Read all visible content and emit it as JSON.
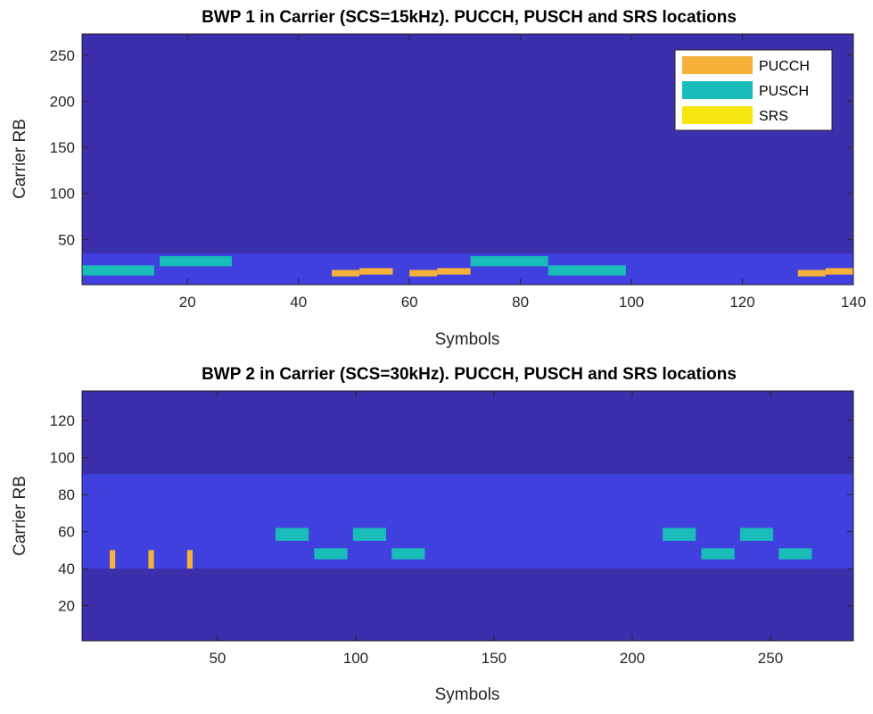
{
  "chart_data": [
    {
      "type": "heatmap",
      "title": "BWP 1 in Carrier (SCS=15kHz). PUCCH, PUSCH and SRS locations",
      "xlabel": "Symbols",
      "ylabel": "Carrier RB",
      "xlim": [
        1,
        140
      ],
      "ylim": [
        1,
        273
      ],
      "xticks": [
        20,
        40,
        60,
        80,
        100,
        120,
        140
      ],
      "yticks": [
        50,
        100,
        150,
        200,
        250
      ],
      "background_color": "#3c2fab",
      "bwp_region": {
        "rb_start": 1,
        "rb_end": 35,
        "color": "#4040de"
      },
      "legend": {
        "location": "top-right",
        "entries": [
          {
            "label": "PUCCH",
            "color": "#f5b13a"
          },
          {
            "label": "PUSCH",
            "color": "#19bcb8"
          },
          {
            "label": "SRS",
            "color": "#f5e60e"
          }
        ]
      },
      "allocations": [
        {
          "channel": "PUSCH",
          "sym_start": 1,
          "sym_end": 14,
          "rb_start": 11,
          "rb_end": 22,
          "color": "#19bcb8"
        },
        {
          "channel": "PUSCH",
          "sym_start": 15,
          "sym_end": 28,
          "rb_start": 21,
          "rb_end": 32,
          "color": "#19bcb8"
        },
        {
          "channel": "PUCCH",
          "sym_start": 46,
          "sym_end": 51,
          "rb_start": 10,
          "rb_end": 17,
          "color": "#f5b13a"
        },
        {
          "channel": "PUCCH",
          "sym_start": 51,
          "sym_end": 57,
          "rb_start": 12,
          "rb_end": 19,
          "color": "#f5b13a"
        },
        {
          "channel": "PUCCH",
          "sym_start": 60,
          "sym_end": 65,
          "rb_start": 10,
          "rb_end": 17,
          "color": "#f5b13a"
        },
        {
          "channel": "PUCCH",
          "sym_start": 65,
          "sym_end": 71,
          "rb_start": 12,
          "rb_end": 19,
          "color": "#f5b13a"
        },
        {
          "channel": "PUSCH",
          "sym_start": 71,
          "sym_end": 85,
          "rb_start": 21,
          "rb_end": 32,
          "color": "#19bcb8"
        },
        {
          "channel": "PUSCH",
          "sym_start": 85,
          "sym_end": 99,
          "rb_start": 11,
          "rb_end": 22,
          "color": "#19bcb8"
        },
        {
          "channel": "PUCCH",
          "sym_start": 130,
          "sym_end": 135,
          "rb_start": 10,
          "rb_end": 17,
          "color": "#f5b13a"
        },
        {
          "channel": "PUCCH",
          "sym_start": 135,
          "sym_end": 140,
          "rb_start": 12,
          "rb_end": 19,
          "color": "#f5b13a"
        }
      ]
    },
    {
      "type": "heatmap",
      "title": "BWP 2 in Carrier (SCS=30kHz). PUCCH, PUSCH and SRS locations",
      "xlabel": "Symbols",
      "ylabel": "Carrier RB",
      "xlim": [
        1,
        280
      ],
      "ylim": [
        1,
        136
      ],
      "xticks": [
        50,
        100,
        150,
        200,
        250
      ],
      "yticks": [
        20,
        40,
        60,
        80,
        100,
        120
      ],
      "background_color": "#3c2fab",
      "bwp_region": {
        "rb_start": 40,
        "rb_end": 91,
        "color": "#4040de"
      },
      "allocations": [
        {
          "channel": "PUCCH",
          "sym_start": 11,
          "sym_end": 13,
          "rb_start": 40,
          "rb_end": 50,
          "color": "#f5b13a"
        },
        {
          "channel": "PUCCH",
          "sym_start": 25,
          "sym_end": 27,
          "rb_start": 40,
          "rb_end": 50,
          "color": "#f5b13a"
        },
        {
          "channel": "PUCCH",
          "sym_start": 39,
          "sym_end": 41,
          "rb_start": 40,
          "rb_end": 50,
          "color": "#f5b13a"
        },
        {
          "channel": "PUSCH",
          "sym_start": 71,
          "sym_end": 83,
          "rb_start": 55,
          "rb_end": 62,
          "color": "#19bcb8"
        },
        {
          "channel": "PUSCH",
          "sym_start": 85,
          "sym_end": 97,
          "rb_start": 45,
          "rb_end": 51,
          "color": "#19bcb8"
        },
        {
          "channel": "PUSCH",
          "sym_start": 99,
          "sym_end": 111,
          "rb_start": 55,
          "rb_end": 62,
          "color": "#19bcb8"
        },
        {
          "channel": "PUSCH",
          "sym_start": 113,
          "sym_end": 125,
          "rb_start": 45,
          "rb_end": 51,
          "color": "#19bcb8"
        },
        {
          "channel": "PUSCH",
          "sym_start": 211,
          "sym_end": 223,
          "rb_start": 55,
          "rb_end": 62,
          "color": "#19bcb8"
        },
        {
          "channel": "PUSCH",
          "sym_start": 225,
          "sym_end": 237,
          "rb_start": 45,
          "rb_end": 51,
          "color": "#19bcb8"
        },
        {
          "channel": "PUSCH",
          "sym_start": 239,
          "sym_end": 251,
          "rb_start": 55,
          "rb_end": 62,
          "color": "#19bcb8"
        },
        {
          "channel": "PUSCH",
          "sym_start": 253,
          "sym_end": 265,
          "rb_start": 45,
          "rb_end": 51,
          "color": "#19bcb8"
        }
      ]
    }
  ]
}
